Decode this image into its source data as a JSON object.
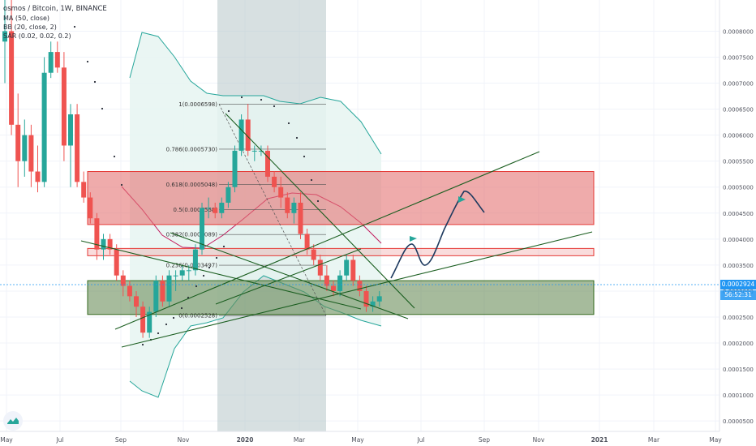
{
  "header": {
    "symbol_line": "osmos / Bitcoin, 1W, BINANCE",
    "indicators": [
      "MA (50, close)",
      "BB (20, close, 2)",
      "SAR (0.02, 0.02, 0.2)"
    ]
  },
  "price_tag": "0.0002924",
  "countdown_tag": "56:52:31",
  "colors": {
    "up": "#26a69a",
    "down": "#ef5350",
    "bb_fill": "#e6f4f1",
    "zone_red": "#e57373",
    "zone_green": "#6b8e5a",
    "drawing": "#1e3a5f"
  },
  "chart_data": {
    "type": "candlestick",
    "x_ticks": [
      "May",
      "Jul",
      "Sep",
      "Nov",
      "2020",
      "Mar",
      "May",
      "Jul",
      "Sep",
      "Nov",
      "2021",
      "Mar",
      "May"
    ],
    "y_ticks": [
      "0.0000500",
      "0.0001000",
      "0.0001500",
      "0.0002000",
      "0.0002500",
      "0.0003000",
      "0.0003500",
      "0.0004000",
      "0.0004500",
      "0.0005000",
      "0.0005500",
      "0.0006000",
      "0.0006500",
      "0.0007000",
      "0.0007500",
      "0.0008000"
    ],
    "ylim": [
      3e-05,
      0.00086
    ],
    "fib_levels": [
      {
        "ratio": "1",
        "value": 0.0006598,
        "label": "1(0.0006598)"
      },
      {
        "ratio": "0.786",
        "value": 0.000573,
        "label": "0.786(0.0005730)"
      },
      {
        "ratio": "0.618",
        "value": 0.0005048,
        "label": "0.618(0.0005048)"
      },
      {
        "ratio": "0.5",
        "value": 0.0004568,
        "label": "0.5(0.0004568)"
      },
      {
        "ratio": "0.382",
        "value": 0.0004089,
        "label": "0.382(0.0004089)"
      },
      {
        "ratio": "0.236",
        "value": 0.0003497,
        "label": "0.236(0.0003497)"
      },
      {
        "ratio": "0",
        "value": 0.0002528,
        "label": "0(0.0002528)"
      }
    ],
    "candles": [
      {
        "o": 0.00078,
        "h": 0.00086,
        "l": 0.0007,
        "c": 0.0008
      },
      {
        "o": 0.0008,
        "h": 0.00086,
        "l": 0.0006,
        "c": 0.00062
      },
      {
        "o": 0.00062,
        "h": 0.00068,
        "l": 0.0005,
        "c": 0.00055
      },
      {
        "o": 0.00055,
        "h": 0.00063,
        "l": 0.00052,
        "c": 0.0006
      },
      {
        "o": 0.0006,
        "h": 0.00062,
        "l": 0.0005,
        "c": 0.00053
      },
      {
        "o": 0.00053,
        "h": 0.00058,
        "l": 0.00049,
        "c": 0.00051
      },
      {
        "o": 0.00051,
        "h": 0.00075,
        "l": 0.0005,
        "c": 0.00072
      },
      {
        "o": 0.00072,
        "h": 0.00078,
        "l": 0.00071,
        "c": 0.00076
      },
      {
        "o": 0.00076,
        "h": 0.00078,
        "l": 0.00072,
        "c": 0.00073
      },
      {
        "o": 0.00073,
        "h": 0.00076,
        "l": 0.00055,
        "c": 0.00058
      },
      {
        "o": 0.00058,
        "h": 0.00066,
        "l": 0.0005,
        "c": 0.00064
      },
      {
        "o": 0.00064,
        "h": 0.00066,
        "l": 0.0005,
        "c": 0.00051
      },
      {
        "o": 0.00051,
        "h": 0.00053,
        "l": 0.00047,
        "c": 0.00048
      },
      {
        "o": 0.00048,
        "h": 0.00049,
        "l": 0.00043,
        "c": 0.00044
      },
      {
        "o": 0.00044,
        "h": 0.00045,
        "l": 0.00036,
        "c": 0.00038
      },
      {
        "o": 0.00038,
        "h": 0.00041,
        "l": 0.00036,
        "c": 0.0004
      },
      {
        "o": 0.0004,
        "h": 0.00041,
        "l": 0.00037,
        "c": 0.00038
      },
      {
        "o": 0.00038,
        "h": 0.00039,
        "l": 0.00032,
        "c": 0.00033
      },
      {
        "o": 0.00033,
        "h": 0.00034,
        "l": 0.00029,
        "c": 0.00031
      },
      {
        "o": 0.00031,
        "h": 0.00032,
        "l": 0.00028,
        "c": 0.00029
      },
      {
        "o": 0.00029,
        "h": 0.0003,
        "l": 0.00025,
        "c": 0.00027
      },
      {
        "o": 0.00027,
        "h": 0.00028,
        "l": 0.00021,
        "c": 0.00022
      },
      {
        "o": 0.00022,
        "h": 0.00027,
        "l": 0.00021,
        "c": 0.00026
      },
      {
        "o": 0.00026,
        "h": 0.00033,
        "l": 0.00025,
        "c": 0.00032
      },
      {
        "o": 0.00032,
        "h": 0.00033,
        "l": 0.00027,
        "c": 0.00028
      },
      {
        "o": 0.00028,
        "h": 0.00034,
        "l": 0.00027,
        "c": 0.00033
      },
      {
        "o": 0.00033,
        "h": 0.00034,
        "l": 0.0003,
        "c": 0.00033
      },
      {
        "o": 0.00033,
        "h": 0.00035,
        "l": 0.00032,
        "c": 0.00034
      },
      {
        "o": 0.00034,
        "h": 0.00035,
        "l": 0.00032,
        "c": 0.00034
      },
      {
        "o": 0.00034,
        "h": 0.00039,
        "l": 0.00033,
        "c": 0.00038
      },
      {
        "o": 0.00038,
        "h": 0.00047,
        "l": 0.00037,
        "c": 0.00046
      },
      {
        "o": 0.00046,
        "h": 0.00048,
        "l": 0.00044,
        "c": 0.00046
      },
      {
        "o": 0.00046,
        "h": 0.00047,
        "l": 0.00044,
        "c": 0.00045
      },
      {
        "o": 0.00045,
        "h": 0.00048,
        "l": 0.00044,
        "c": 0.00047
      },
      {
        "o": 0.00047,
        "h": 0.00051,
        "l": 0.00046,
        "c": 0.0005
      },
      {
        "o": 0.0005,
        "h": 0.00058,
        "l": 0.00049,
        "c": 0.00057
      },
      {
        "o": 0.00057,
        "h": 0.00064,
        "l": 0.00056,
        "c": 0.00063
      },
      {
        "o": 0.00063,
        "h": 0.00066,
        "l": 0.00056,
        "c": 0.00057
      },
      {
        "o": 0.00057,
        "h": 0.00058,
        "l": 0.00055,
        "c": 0.00057
      },
      {
        "o": 0.00057,
        "h": 0.00058,
        "l": 0.00056,
        "c": 0.00057
      },
      {
        "o": 0.00057,
        "h": 0.00058,
        "l": 0.00051,
        "c": 0.00052
      },
      {
        "o": 0.00052,
        "h": 0.00053,
        "l": 0.00049,
        "c": 0.0005
      },
      {
        "o": 0.0005,
        "h": 0.00052,
        "l": 0.00046,
        "c": 0.00048
      },
      {
        "o": 0.00048,
        "h": 0.00049,
        "l": 0.00044,
        "c": 0.00045
      },
      {
        "o": 0.00045,
        "h": 0.00048,
        "l": 0.00043,
        "c": 0.00047
      },
      {
        "o": 0.00047,
        "h": 0.00049,
        "l": 0.0004,
        "c": 0.00041
      },
      {
        "o": 0.00041,
        "h": 0.00042,
        "l": 0.00037,
        "c": 0.00038
      },
      {
        "o": 0.00038,
        "h": 0.00039,
        "l": 0.00035,
        "c": 0.00036
      },
      {
        "o": 0.00036,
        "h": 0.00037,
        "l": 0.00032,
        "c": 0.00033
      },
      {
        "o": 0.00033,
        "h": 0.00035,
        "l": 0.0003,
        "c": 0.00031
      },
      {
        "o": 0.00031,
        "h": 0.00032,
        "l": 0.00029,
        "c": 0.0003
      },
      {
        "o": 0.0003,
        "h": 0.00034,
        "l": 0.00029,
        "c": 0.00033
      },
      {
        "o": 0.00033,
        "h": 0.00037,
        "l": 0.00032,
        "c": 0.00036
      },
      {
        "o": 0.00036,
        "h": 0.00037,
        "l": 0.00031,
        "c": 0.00032
      },
      {
        "o": 0.00032,
        "h": 0.00033,
        "l": 0.00029,
        "c": 0.0003
      },
      {
        "o": 0.0003,
        "h": 0.00031,
        "l": 0.00026,
        "c": 0.00027
      },
      {
        "o": 0.00027,
        "h": 0.00029,
        "l": 0.00026,
        "c": 0.00028
      },
      {
        "o": 0.00028,
        "h": 0.0003,
        "l": 0.00027,
        "c": 0.00029
      }
    ],
    "zones": [
      {
        "name": "resistance-zone",
        "from": 0.000428,
        "to": 0.00053
      },
      {
        "name": "mid-zone",
        "from": 0.000368,
        "to": 0.000382
      },
      {
        "name": "support-zone",
        "from": 0.000255,
        "to": 0.00032
      }
    ]
  }
}
